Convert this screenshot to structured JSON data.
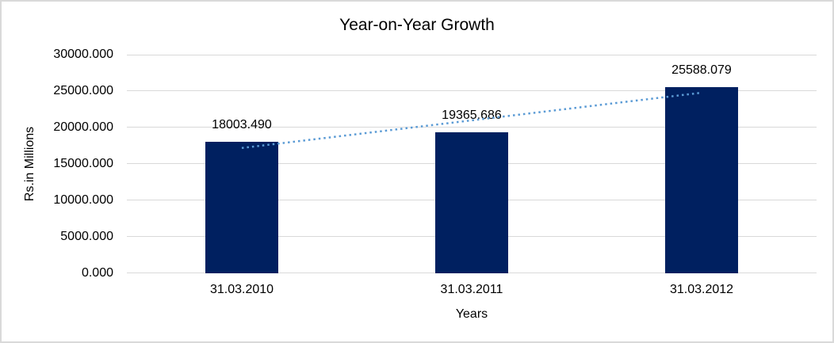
{
  "chart": {
    "background": "#ffffff",
    "border_color": "#d9d9d9"
  },
  "chart_data": {
    "type": "bar",
    "title": "Year-on-Year Growth",
    "xlabel": "Years",
    "ylabel": "Rs.in Millions",
    "categories": [
      "31.03.2010",
      "31.03.2011",
      "31.03.2012"
    ],
    "values": [
      18003.49,
      19365.686,
      25588.079
    ],
    "data_labels": [
      "18003.490",
      "19365.686",
      "25588.079"
    ],
    "ylim": [
      0,
      30000
    ],
    "ytick_step": 5000,
    "ytick_labels": [
      "0.000",
      "5000.000",
      "10000.000",
      "15000.000",
      "20000.000",
      "25000.000",
      "30000.000"
    ],
    "grid": true,
    "legend": false,
    "bar_color": "#002060",
    "gridline_color": "#d9d9d9",
    "trendline": {
      "fit": "linear",
      "style": "dotted",
      "color": "#5b9bd5"
    }
  }
}
